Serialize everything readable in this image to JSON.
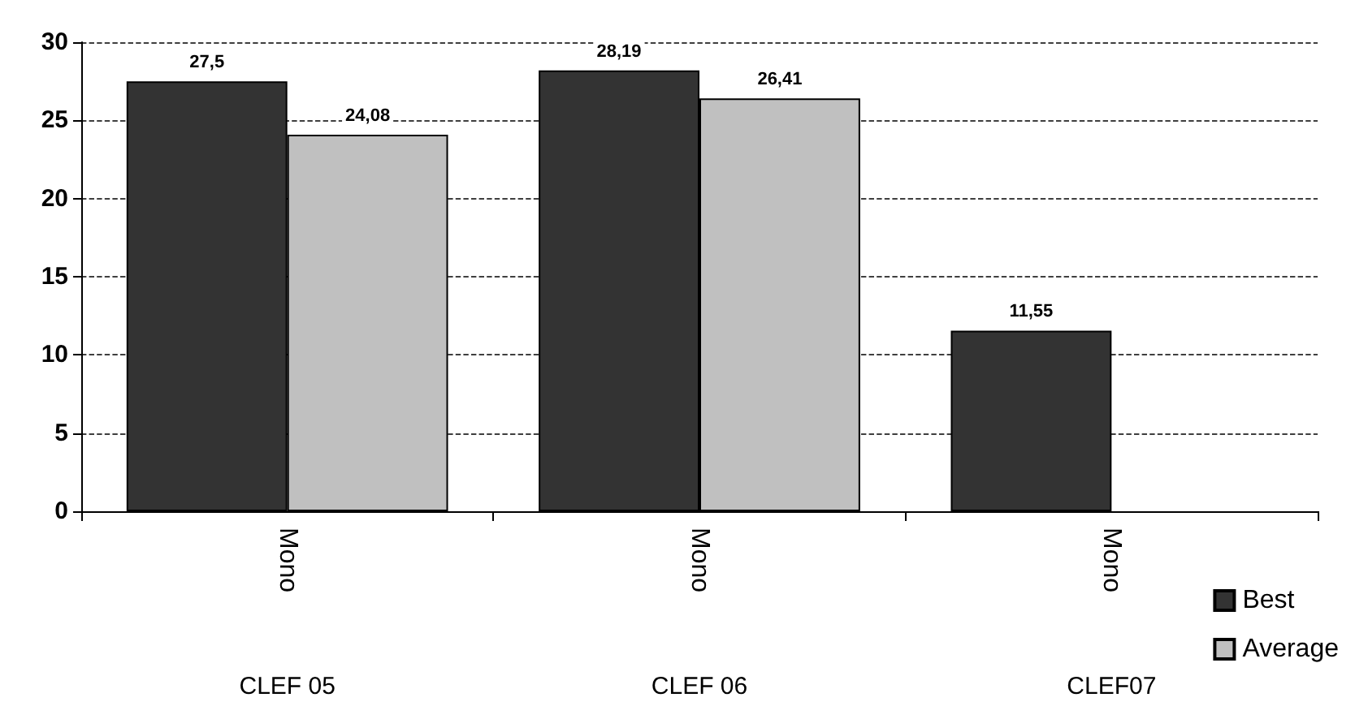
{
  "chart_data": {
    "type": "bar",
    "categories": [
      "Mono",
      "Mono",
      "Mono"
    ],
    "series": [
      {
        "name": "Best",
        "color": "#333333",
        "values": [
          27.5,
          28.19,
          11.55
        ],
        "value_labels": [
          "27,5",
          "28,19",
          "11,55"
        ]
      },
      {
        "name": "Average",
        "color": "#c0c0c0",
        "values": [
          24.08,
          26.41,
          null
        ],
        "value_labels": [
          "24,08",
          "26,41",
          null
        ]
      }
    ],
    "ylim": [
      0,
      30
    ],
    "yticks": [
      0,
      5,
      10,
      15,
      20,
      25,
      30
    ],
    "grid": "y",
    "legend": "bottom right",
    "annotations": [
      "CLEF 05",
      "CLEF 06",
      "CLEF07"
    ]
  }
}
